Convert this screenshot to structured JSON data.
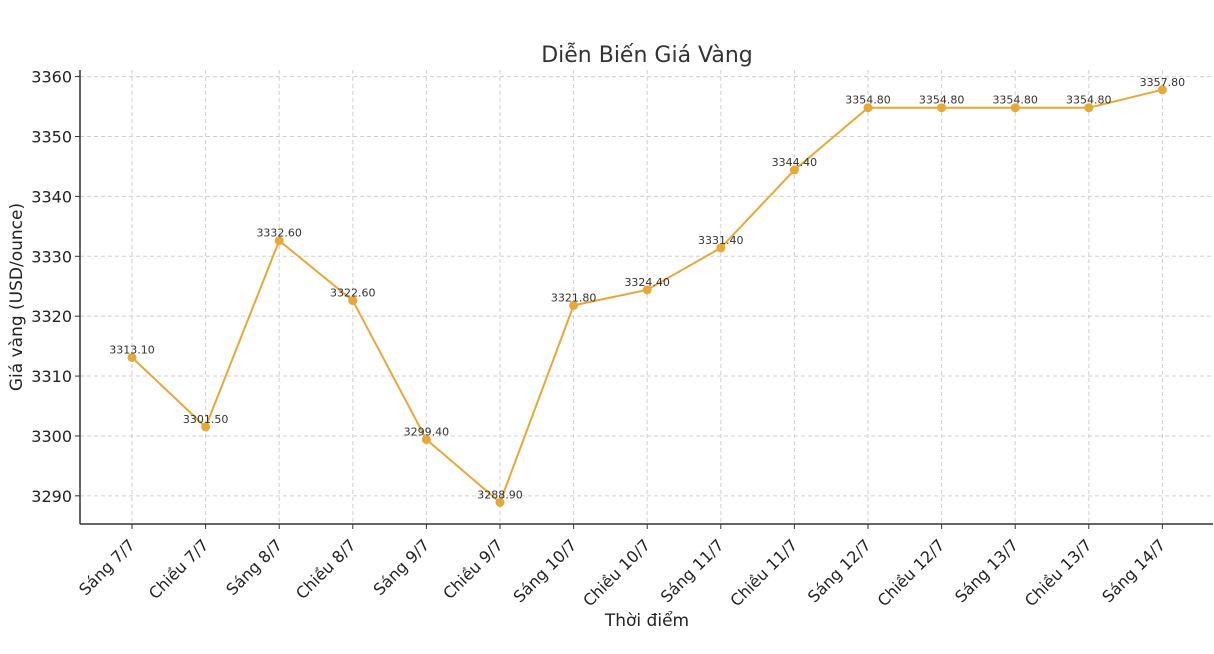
{
  "chart_data": {
    "type": "line",
    "title": "Diễn Biến Giá Vàng",
    "xlabel": "Thời điểm",
    "ylabel": "Giá vàng (USD/ounce)",
    "categories": [
      "Sáng 7/7",
      "Chiều 7/7",
      "Sáng 8/7",
      "Chiều 8/7",
      "Sáng 9/7",
      "Chiều 9/7",
      "Sáng 10/7",
      "Chiều 10/7",
      "Sáng 11/7",
      "Chiều 11/7",
      "Sáng 12/7",
      "Chiều 12/7",
      "Sáng 13/7",
      "Chiều 13/7",
      "Sáng 14/7"
    ],
    "series": [
      {
        "values": [
          3313.1,
          3301.5,
          3332.6,
          3322.6,
          3299.4,
          3288.9,
          3321.8,
          3324.4,
          3331.4,
          3344.4,
          3354.8,
          3354.8,
          3354.8,
          3354.8,
          3357.8
        ],
        "labels": [
          "3313.10",
          "3301.50",
          "3332.60",
          "3322.60",
          "3299.40",
          "3288.90",
          "3321.80",
          "3324.40",
          "3331.40",
          "3344.40",
          "3354.80",
          "3354.80",
          "3354.80",
          "3354.80",
          "3357.80"
        ],
        "color": "#e8a838"
      }
    ],
    "yticks": [
      3290,
      3300,
      3310,
      3320,
      3330,
      3340,
      3350,
      3360
    ],
    "ylim": [
      3285.3,
      3361.1
    ],
    "grid": true,
    "legend": "none"
  }
}
